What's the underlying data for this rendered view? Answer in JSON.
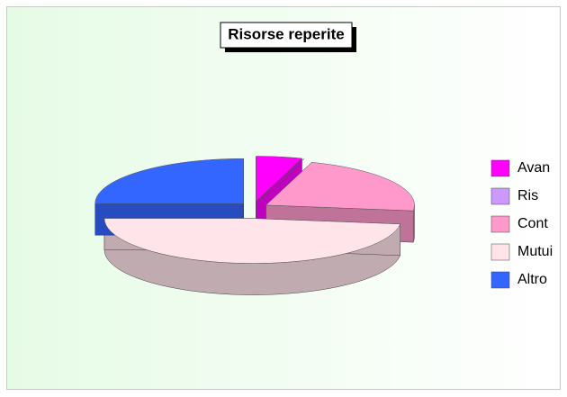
{
  "chart_data": {
    "type": "pie",
    "title": "Risorse reperite",
    "categories": [
      "Avan",
      "Ris",
      "Cont",
      "Mutui",
      "Altro"
    ],
    "values": [
      5,
      0,
      22,
      48,
      25
    ],
    "colors": [
      "#ff00ff",
      "#cc99ff",
      "#ff99cc",
      "#ffe4ea",
      "#3366ff"
    ],
    "legend": "right"
  }
}
